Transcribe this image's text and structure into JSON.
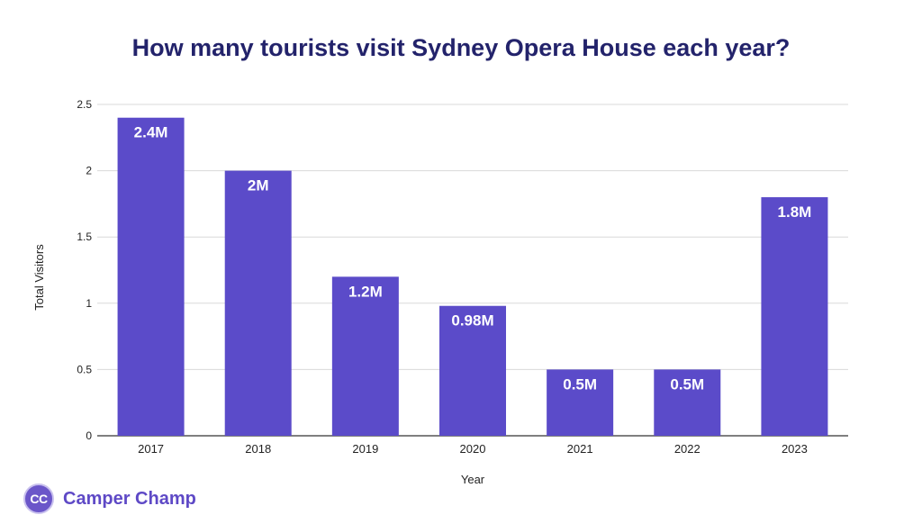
{
  "chart_data": {
    "type": "bar",
    "title": "How many tourists visit Sydney Opera House each year?",
    "xlabel": "Year",
    "ylabel": "Total Visitors",
    "categories": [
      "2017",
      "2018",
      "2019",
      "2020",
      "2021",
      "2022",
      "2023"
    ],
    "values": [
      2.4,
      2.0,
      1.2,
      0.98,
      0.5,
      0.5,
      1.8
    ],
    "data_labels": [
      "2.4M",
      "2M",
      "1.2M",
      "0.98M",
      "0.5M",
      "0.5M",
      "1.8M"
    ],
    "ylim": [
      0,
      2.5
    ],
    "yticks": [
      "0",
      "0.5",
      "1",
      "1.5",
      "2",
      "2.5"
    ],
    "ytick_values": [
      0,
      0.5,
      1,
      1.5,
      2,
      2.5
    ],
    "grid": true,
    "legend": "none",
    "colors": {
      "bar": "#5b4bc9",
      "title": "#23236b",
      "grid": "#d9d9d9"
    }
  },
  "brand": {
    "logo_text": "CC",
    "name": "Camper Champ",
    "color": "#5e49c6"
  }
}
